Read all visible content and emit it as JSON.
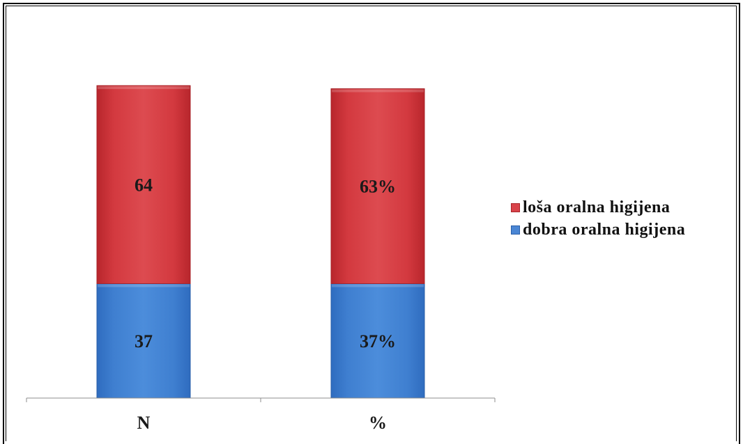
{
  "chart_data": {
    "type": "bar",
    "stacked": true,
    "categories": [
      "N",
      "%"
    ],
    "series": [
      {
        "name": "dobra oralna higijena",
        "values": [
          37,
          37
        ],
        "labels": [
          "37",
          "37%"
        ],
        "color": "#4a86d4"
      },
      {
        "name": "loša oralna higijena",
        "values": [
          64,
          63
        ],
        "labels": [
          "64",
          "63%"
        ],
        "color": "#d9434a"
      }
    ],
    "legend_order": [
      1,
      0
    ],
    "legend_position": "right",
    "grid": false
  }
}
